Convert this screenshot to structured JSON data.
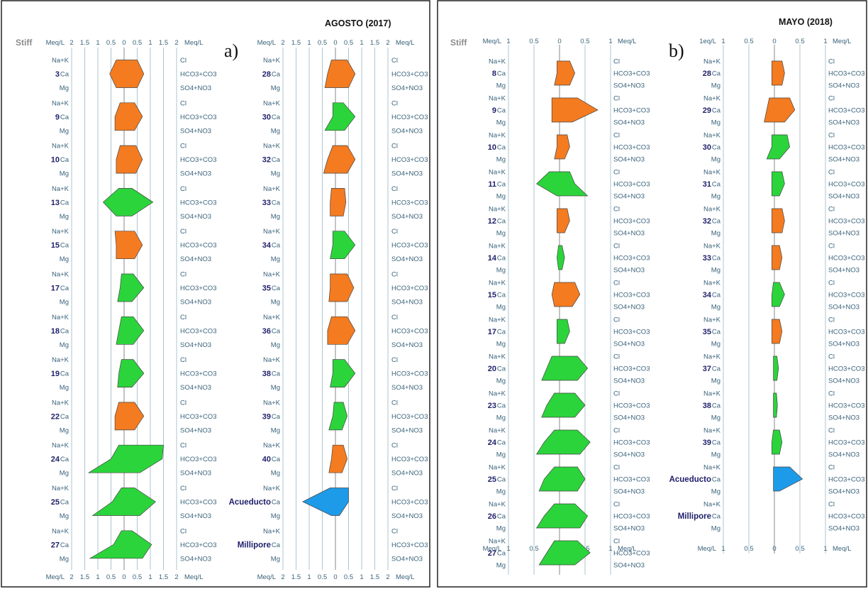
{
  "chart_data": [
    {
      "type": "stiff",
      "panel_label": "a)",
      "title": "AGOSTO (2017)",
      "corner_label": "Stiff",
      "unit_label": "Meq/L",
      "columns": [
        {
          "x_ticks": [
            "2",
            "1.5",
            "1",
            "0.5",
            "0",
            "0.5",
            "1",
            "1.5",
            "2"
          ],
          "xlim": [
            -2,
            2
          ],
          "left_ions": [
            "Na+K",
            "Ca",
            "Mg"
          ],
          "right_ions": [
            "Cl",
            "HCO3+CO3",
            "SO4+NO3"
          ],
          "samples": [
            {
              "label": "3",
              "type": "calcic",
              "cations": [
                0.3,
                0.55,
                0.3
              ],
              "anions": [
                0.5,
                0.75,
                0.5
              ]
            },
            {
              "label": "9",
              "type": "calcic",
              "cations": [
                0.15,
                0.35,
                0.35
              ],
              "anions": [
                0.4,
                0.7,
                0.4
              ]
            },
            {
              "label": "10",
              "type": "calcic",
              "cations": [
                0.15,
                0.3,
                0.3
              ],
              "anions": [
                0.45,
                0.7,
                0.45
              ]
            },
            {
              "label": "13",
              "type": "sodic",
              "cations": [
                0.2,
                0.8,
                0.3
              ],
              "anions": [
                0.3,
                1.1,
                0.3
              ]
            },
            {
              "label": "15",
              "type": "calcic",
              "cations": [
                0.35,
                0.3,
                0.3
              ],
              "anions": [
                0.4,
                0.7,
                0.4
              ]
            },
            {
              "label": "17",
              "type": "sodic",
              "cations": [
                0.1,
                0.15,
                0.25
              ],
              "anions": [
                0.35,
                0.75,
                0.3
              ]
            },
            {
              "label": "18",
              "type": "sodic",
              "cations": [
                0.1,
                0.2,
                0.3
              ],
              "anions": [
                0.35,
                0.75,
                0.35
              ]
            },
            {
              "label": "19",
              "type": "sodic",
              "cations": [
                0.1,
                0.2,
                0.25
              ],
              "anions": [
                0.35,
                0.75,
                0.3
              ]
            },
            {
              "label": "22",
              "type": "calcic",
              "cations": [
                0.2,
                0.35,
                0.35
              ],
              "anions": [
                0.4,
                0.75,
                0.4
              ]
            },
            {
              "label": "24",
              "type": "sodic",
              "cations": [
                0.2,
                0.5,
                1.35
              ],
              "anions": [
                1.5,
                1.45,
                0.6
              ]
            },
            {
              "label": "25",
              "type": "sodic",
              "cations": [
                0.1,
                0.45,
                1.2
              ],
              "anions": [
                0.4,
                1.2,
                0.6
              ]
            },
            {
              "label": "27",
              "type": "sodic",
              "cations": [
                0.1,
                0.4,
                1.3
              ],
              "anions": [
                0.3,
                1.05,
                0.7
              ]
            }
          ]
        },
        {
          "x_ticks": [
            "2",
            "1.5",
            "1",
            "0.5",
            "0",
            "0.5",
            "1",
            "1.5",
            "2"
          ],
          "xlim": [
            -2,
            2
          ],
          "left_ions": [
            "Na+K",
            "Ca",
            "Mg"
          ],
          "right_ions": [
            "Cl",
            "HCO3+CO3",
            "SO4+NO3"
          ],
          "samples": [
            {
              "label": "28",
              "type": "calcic",
              "cations": [
                0.15,
                0.3,
                0.4
              ],
              "anions": [
                0.45,
                0.75,
                0.5
              ]
            },
            {
              "label": "30",
              "type": "sodic",
              "cations": [
                0.1,
                0.1,
                0.4
              ],
              "anions": [
                0.3,
                0.75,
                0.35
              ]
            },
            {
              "label": "32",
              "type": "calcic",
              "cations": [
                0.1,
                0.3,
                0.45
              ],
              "anions": [
                0.45,
                0.75,
                0.45
              ]
            },
            {
              "label": "33",
              "type": "calcic",
              "cations": [
                0.15,
                0.2,
                0.2
              ],
              "anions": [
                0.35,
                0.4,
                0.3
              ]
            },
            {
              "label": "34",
              "type": "sodic",
              "cations": [
                0.1,
                0.1,
                0.2
              ],
              "anions": [
                0.35,
                0.75,
                0.35
              ]
            },
            {
              "label": "35",
              "type": "calcic",
              "cations": [
                0.2,
                0.2,
                0.25
              ],
              "anions": [
                0.45,
                0.7,
                0.45
              ]
            },
            {
              "label": "36",
              "type": "calcic",
              "cations": [
                0.15,
                0.3,
                0.3
              ],
              "anions": [
                0.45,
                0.75,
                0.45
              ]
            },
            {
              "label": "38",
              "type": "sodic",
              "cations": [
                0.1,
                0.1,
                0.2
              ],
              "anions": [
                0.35,
                0.75,
                0.35
              ]
            },
            {
              "label": "39",
              "type": "sodic",
              "cations": [
                0.05,
                0.1,
                0.25
              ],
              "anions": [
                0.3,
                0.45,
                0.25
              ]
            },
            {
              "label": "40",
              "type": "calcic",
              "cations": [
                0.1,
                0.15,
                0.25
              ],
              "anions": [
                0.3,
                0.45,
                0.25
              ]
            },
            {
              "label": "Acueducto",
              "type": "acueducto",
              "cations": [
                0.2,
                1.25,
                0.15
              ],
              "anions": [
                0.5,
                0.5,
                0.15
              ]
            },
            {
              "label": "Millipore",
              "type": "none",
              "cations": [
                0,
                0,
                0
              ],
              "anions": [
                0,
                0,
                0
              ]
            }
          ]
        }
      ]
    },
    {
      "type": "stiff",
      "panel_label": "b)",
      "title": "MAYO (2018)",
      "corner_label": "Stiff",
      "unit_label": "Meq/L",
      "columns": [
        {
          "left_unit_label": "Meq/L",
          "x_ticks": [
            "1",
            "0.5",
            "0",
            "0.5",
            "1"
          ],
          "xlim": [
            -1,
            1
          ],
          "left_ions": [
            "Na+K",
            "Ca",
            "Mg"
          ],
          "right_ions": [
            "Cl",
            "HCO3+CO3",
            "SO4+NO3"
          ],
          "samples": [
            {
              "label": "8",
              "type": "calcic",
              "cations": [
                0.05,
                0.05,
                0.1
              ],
              "anions": [
                0.2,
                0.3,
                0.2
              ]
            },
            {
              "label": "9",
              "type": "calcic",
              "cations": [
                0.15,
                0.15,
                0.15
              ],
              "anions": [
                0.35,
                0.75,
                0.25
              ]
            },
            {
              "label": "10",
              "type": "calcic",
              "cations": [
                0.05,
                0.05,
                0.1
              ],
              "anions": [
                0.15,
                0.2,
                0.1
              ]
            },
            {
              "label": "11",
              "type": "sodic",
              "cations": [
                0.2,
                0.45,
                0.05
              ],
              "anions": [
                0.2,
                0.3,
                0.55
              ]
            },
            {
              "label": "12",
              "type": "calcic",
              "cations": [
                0.05,
                0.05,
                0.05
              ],
              "anions": [
                0.15,
                0.2,
                0.1
              ]
            },
            {
              "label": "14",
              "type": "sodic",
              "cations": [
                0.02,
                0.05,
                0.02
              ],
              "anions": [
                0.05,
                0.1,
                0.05
              ]
            },
            {
              "label": "15",
              "type": "calcic",
              "cations": [
                0.1,
                0.15,
                0.1
              ],
              "anions": [
                0.3,
                0.4,
                0.25
              ]
            },
            {
              "label": "17",
              "type": "sodic",
              "cations": [
                0.05,
                0.05,
                0.05
              ],
              "anions": [
                0.15,
                0.2,
                0.1
              ]
            },
            {
              "label": "20",
              "type": "sodic",
              "cations": [
                0.15,
                0.25,
                0.35
              ],
              "anions": [
                0.35,
                0.55,
                0.35
              ]
            },
            {
              "label": "23",
              "type": "sodic",
              "cations": [
                0.1,
                0.25,
                0.35
              ],
              "anions": [
                0.3,
                0.5,
                0.3
              ]
            },
            {
              "label": "24",
              "type": "sodic",
              "cations": [
                0.1,
                0.3,
                0.45
              ],
              "anions": [
                0.35,
                0.6,
                0.4
              ]
            },
            {
              "label": "25",
              "type": "sodic",
              "cations": [
                0.1,
                0.3,
                0.4
              ],
              "anions": [
                0.35,
                0.5,
                0.35
              ]
            },
            {
              "label": "26",
              "type": "sodic",
              "cations": [
                0.1,
                0.3,
                0.45
              ],
              "anions": [
                0.3,
                0.55,
                0.4
              ]
            },
            {
              "label": "27",
              "type": "sodic",
              "cations": [
                0.1,
                0.25,
                0.4
              ],
              "anions": [
                0.35,
                0.6,
                0.3
              ]
            }
          ]
        },
        {
          "left_unit_label": "1eq/L",
          "x_ticks": [
            "1",
            "0.5",
            "0",
            "0.5",
            "1"
          ],
          "xlim": [
            -1,
            1
          ],
          "left_ions": [
            "Na+K",
            "Ca",
            "Mg"
          ],
          "right_ions": [
            "Cl",
            "HCO3+CO3",
            "SO4+NO3"
          ],
          "samples": [
            {
              "label": "28",
              "type": "calcic",
              "cations": [
                0.05,
                0.05,
                0.05
              ],
              "anions": [
                0.15,
                0.2,
                0.15
              ]
            },
            {
              "label": "29",
              "type": "calcic",
              "cations": [
                0.1,
                0.15,
                0.2
              ],
              "anions": [
                0.3,
                0.4,
                0.2
              ]
            },
            {
              "label": "30",
              "type": "sodic",
              "cations": [
                0.05,
                0.05,
                0.15
              ],
              "anions": [
                0.25,
                0.3,
                0.1
              ]
            },
            {
              "label": "31",
              "type": "sodic",
              "cations": [
                0.05,
                0.05,
                0.05
              ],
              "anions": [
                0.15,
                0.2,
                0.1
              ]
            },
            {
              "label": "32",
              "type": "calcic",
              "cations": [
                0.05,
                0.05,
                0.05
              ],
              "anions": [
                0.15,
                0.2,
                0.15
              ]
            },
            {
              "label": "33",
              "type": "calcic",
              "cations": [
                0.05,
                0.05,
                0.05
              ],
              "anions": [
                0.1,
                0.15,
                0.1
              ]
            },
            {
              "label": "34",
              "type": "sodic",
              "cations": [
                0.02,
                0.05,
                0.05
              ],
              "anions": [
                0.1,
                0.2,
                0.1
              ]
            },
            {
              "label": "35",
              "type": "calcic",
              "cations": [
                0.05,
                0.05,
                0.05
              ],
              "anions": [
                0.1,
                0.15,
                0.1
              ]
            },
            {
              "label": "37",
              "type": "sodic",
              "cations": [
                0.02,
                0.02,
                0.02
              ],
              "anions": [
                0.05,
                0.08,
                0.05
              ]
            },
            {
              "label": "38",
              "type": "sodic",
              "cations": [
                0.02,
                0.02,
                0.02
              ],
              "anions": [
                0.04,
                0.06,
                0.04
              ]
            },
            {
              "label": "39",
              "type": "sodic",
              "cations": [
                0.02,
                0.05,
                0.05
              ],
              "anions": [
                0.1,
                0.15,
                0.1
              ]
            },
            {
              "label": "Acueducto",
              "type": "acueducto",
              "cations": [
                0.02,
                0.02,
                0.02
              ],
              "anions": [
                0.3,
                0.55,
                0.1
              ]
            },
            {
              "label": "Millipore",
              "type": "none",
              "cations": [
                0,
                0,
                0
              ],
              "anions": [
                0,
                0,
                0
              ]
            }
          ]
        }
      ]
    }
  ],
  "colors": {
    "calcic": "#f47b20",
    "sodic": "#2bd43b",
    "acueducto": "#1e9be8",
    "grid": "#9ab6c4",
    "text": "#39627a",
    "sample_label": "#1f1f6a"
  }
}
